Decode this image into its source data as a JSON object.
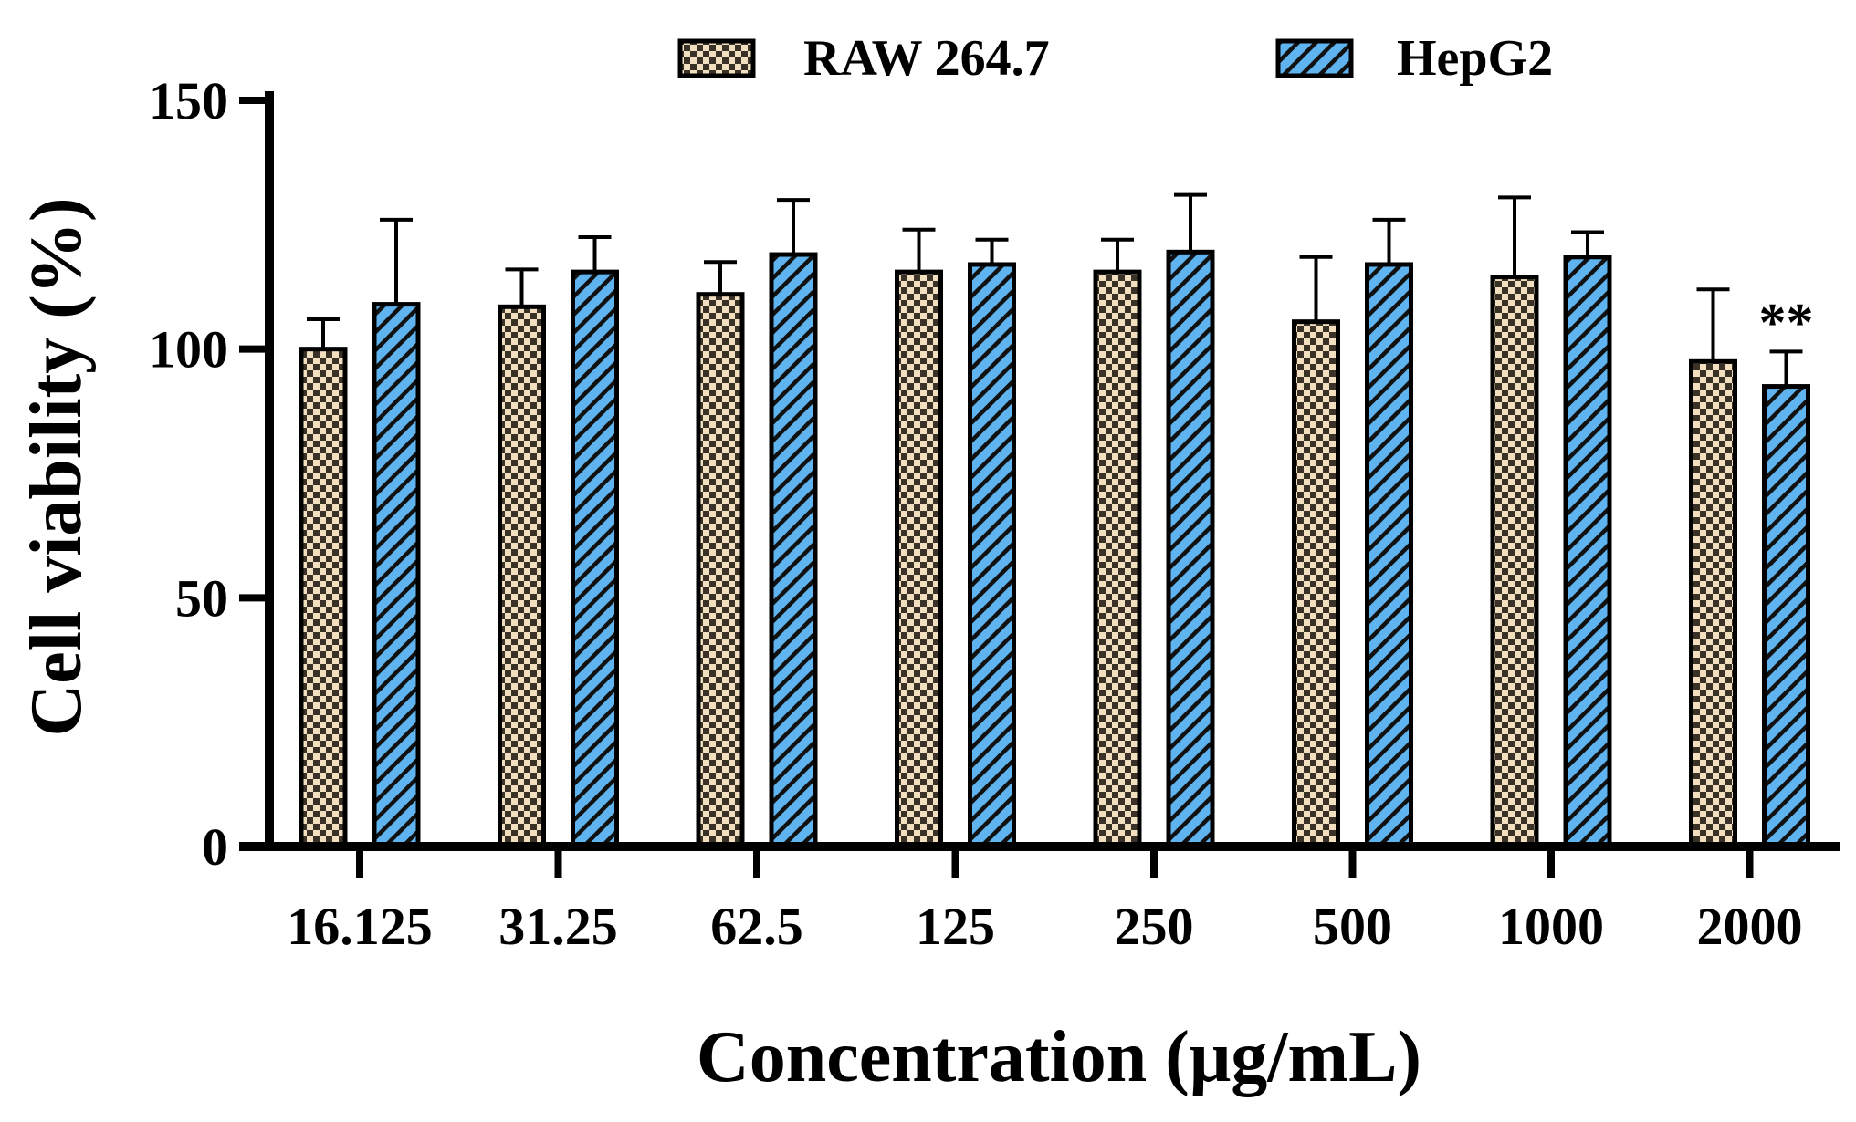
{
  "chart_data": {
    "type": "bar",
    "title": "",
    "xlabel": "Concentration (μg/mL)",
    "ylabel": "Cell viability (%)",
    "ylim": [
      0,
      150
    ],
    "yticks": [
      "0",
      "50",
      "100",
      "150"
    ],
    "categories": [
      "16.125",
      "31.25",
      "62.5",
      "125",
      "250",
      "500",
      "1000",
      "2000"
    ],
    "series": [
      {
        "name": "RAW 264.7",
        "pattern": "checker",
        "fill": "#F2DFC0",
        "values": [
          100,
          108.5,
          111,
          115.5,
          115.5,
          105.5,
          114.5,
          97.5
        ],
        "errors": [
          6,
          7.5,
          6.5,
          8.5,
          6.5,
          13,
          16,
          14.5
        ]
      },
      {
        "name": "HepG2",
        "pattern": "diagonal-hatch",
        "fill": "#5FB3EE",
        "values": [
          109,
          115.5,
          119,
          117,
          119.5,
          117,
          118.5,
          92.5
        ],
        "errors": [
          17,
          7,
          11,
          5,
          11.5,
          9,
          5,
          7
        ]
      }
    ],
    "annotations": [
      {
        "category": "2000",
        "series": "HepG2",
        "text": "**"
      }
    ],
    "legend": "top-center",
    "grid": false
  }
}
